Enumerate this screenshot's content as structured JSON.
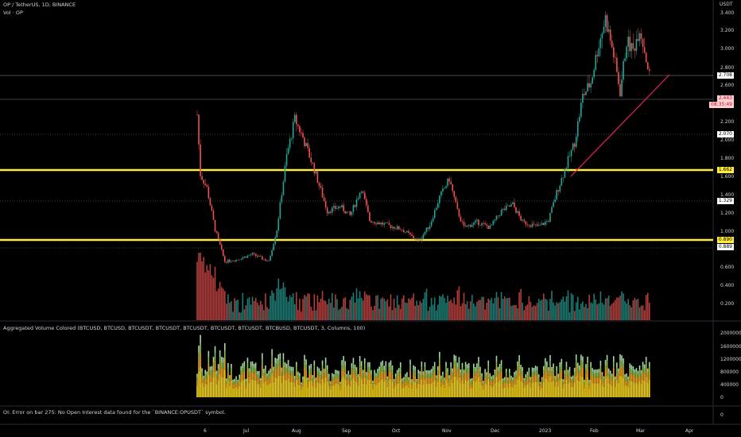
{
  "header": {
    "title": "OP / TetherUS, 1D, BINANCE",
    "vol_label": "Vol · OP",
    "agg_label": "Aggregated Volume Colored (BTCUSD, BTCUSD, BTCUSDT, BTCUSDT, BTCUSDT, BTCUSDT, BTCUSDT, BTCBUSD, BTCUSDT, 3, Columns, 100)",
    "oi_error": "OI: Error on bar 275: No Open Interest data found for the `BINANCE:OPUSDT` symbol.",
    "currency": "USDT"
  },
  "price_axis": [
    "3.400",
    "3.200",
    "3.000",
    "2.800",
    "2.600",
    "2.200",
    "2.000",
    "1.800",
    "1.600",
    "1.400",
    "1.200",
    "1.000",
    "0.800",
    "0.600",
    "0.400",
    "0.200"
  ],
  "volume_axis": [
    "2000000",
    "1600000",
    "1200000",
    "800000",
    "400000",
    "0"
  ],
  "oi_axis": [
    "0"
  ],
  "badges": [
    {
      "label": "2.708",
      "kind": "level"
    },
    {
      "label": "2.443",
      "kind": "last"
    },
    {
      "label": "08:35:49",
      "kind": "timer"
    },
    {
      "label": "2.070",
      "kind": "level"
    },
    {
      "label": "1.662",
      "kind": "yellow"
    },
    {
      "label": "1.329",
      "kind": "level"
    },
    {
      "label": "0.890",
      "kind": "yellow"
    },
    {
      "label": "0.889",
      "kind": "level"
    }
  ],
  "date_axis": [
    "6",
    "Jul",
    "Aug",
    "Sep",
    "Oct",
    "Nov",
    "Dec",
    "2023",
    "Feb",
    "Mar",
    "Apr"
  ],
  "colors": {
    "up": "#26a69a",
    "down": "#ef5350",
    "yellow_level": "#ffeb3b",
    "trendline": "#e91e63",
    "background": "#000000"
  },
  "chart_data": {
    "type": "candlestick",
    "title": "OP / TetherUS, 1D, BINANCE",
    "ylim": [
      0,
      3.4
    ],
    "horizontal_levels": [
      {
        "value": 2.708,
        "style": "solid-thin"
      },
      {
        "value": 2.07,
        "style": "dotted"
      },
      {
        "value": 1.662,
        "style": "yellow-thick"
      },
      {
        "value": 1.329,
        "style": "dotted"
      },
      {
        "value": 0.89,
        "style": "yellow-thick"
      }
    ],
    "trendline": {
      "from": {
        "date": "2023-01-18",
        "price": 1.6
      },
      "to": {
        "date": "2023-03-10",
        "price": 2.7
      }
    },
    "last_price": 2.443,
    "price_path": [
      [
        "2022-06-01",
        2.1
      ],
      [
        "2022-06-03",
        1.45
      ],
      [
        "2022-06-07",
        1.3
      ],
      [
        "2022-06-12",
        0.85
      ],
      [
        "2022-06-18",
        0.5
      ],
      [
        "2022-06-25",
        0.52
      ],
      [
        "2022-07-05",
        0.58
      ],
      [
        "2022-07-15",
        0.5
      ],
      [
        "2022-07-20",
        0.85
      ],
      [
        "2022-07-26",
        1.65
      ],
      [
        "2022-07-31",
        2.05
      ],
      [
        "2022-08-05",
        1.85
      ],
      [
        "2022-08-12",
        1.5
      ],
      [
        "2022-08-20",
        1.05
      ],
      [
        "2022-08-28",
        1.1
      ],
      [
        "2022-09-03",
        1.0
      ],
      [
        "2022-09-10",
        1.3
      ],
      [
        "2022-09-15",
        0.95
      ],
      [
        "2022-09-25",
        0.9
      ],
      [
        "2022-10-05",
        0.85
      ],
      [
        "2022-10-15",
        0.72
      ],
      [
        "2022-10-22",
        0.9
      ],
      [
        "2022-10-28",
        1.2
      ],
      [
        "2022-11-03",
        1.4
      ],
      [
        "2022-11-08",
        1.05
      ],
      [
        "2022-11-12",
        0.87
      ],
      [
        "2022-11-20",
        0.93
      ],
      [
        "2022-11-28",
        0.87
      ],
      [
        "2022-12-05",
        1.05
      ],
      [
        "2022-12-12",
        1.12
      ],
      [
        "2022-12-18",
        0.93
      ],
      [
        "2022-12-28",
        0.88
      ],
      [
        "2023-01-03",
        0.95
      ],
      [
        "2023-01-08",
        1.25
      ],
      [
        "2023-01-14",
        1.55
      ],
      [
        "2023-01-19",
        1.8
      ],
      [
        "2023-01-24",
        2.3
      ],
      [
        "2023-01-29",
        2.45
      ],
      [
        "2023-02-02",
        2.8
      ],
      [
        "2023-02-07",
        3.15
      ],
      [
        "2023-02-12",
        2.75
      ],
      [
        "2023-02-16",
        2.35
      ],
      [
        "2023-02-20",
        2.9
      ],
      [
        "2023-02-24",
        2.8
      ],
      [
        "2023-02-28",
        3.05
      ],
      [
        "2023-03-03",
        2.8
      ],
      [
        "2023-03-07",
        2.443
      ]
    ]
  }
}
